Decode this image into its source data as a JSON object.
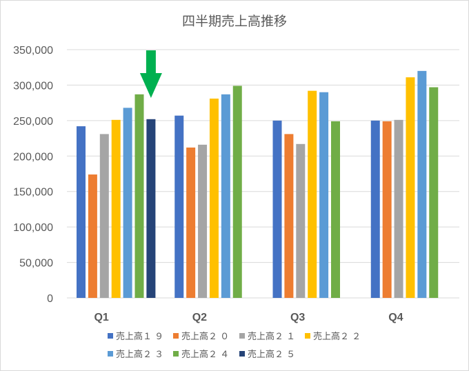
{
  "chart_data": {
    "type": "bar",
    "title": "四半期売上高推移",
    "categories": [
      "Q1",
      "Q2",
      "Q3",
      "Q4"
    ],
    "ylim": [
      0,
      350000
    ],
    "yticks": [
      0,
      50000,
      100000,
      150000,
      200000,
      250000,
      300000,
      350000
    ],
    "ytick_labels": [
      "0",
      "50,000",
      "100,000",
      "150,000",
      "200,000",
      "250,000",
      "300,000",
      "350,000"
    ],
    "grid": true,
    "legend_position": "bottom",
    "series": [
      {
        "name": "売上高１９",
        "color": "#4472C4",
        "values": [
          242000,
          257000,
          250000,
          250000
        ]
      },
      {
        "name": "売上高２０",
        "color": "#ED7D31",
        "values": [
          174000,
          212000,
          231000,
          249000
        ]
      },
      {
        "name": "売上高２１",
        "color": "#A5A5A5",
        "values": [
          231000,
          216000,
          217000,
          251000
        ]
      },
      {
        "name": "売上高２２",
        "color": "#FFC000",
        "values": [
          251000,
          281000,
          292000,
          311000
        ]
      },
      {
        "name": "売上高２３",
        "color": "#5B9BD5",
        "values": [
          268000,
          287000,
          290000,
          320000
        ]
      },
      {
        "name": "売上高２４",
        "color": "#70AD47",
        "values": [
          287000,
          299000,
          249000,
          297000
        ]
      },
      {
        "name": "売上高２５",
        "color": "#264478",
        "values": [
          252000,
          null,
          null,
          null
        ]
      }
    ],
    "annotation": {
      "type": "arrow",
      "color": "#00B050",
      "target_category": "Q1",
      "target_series": "売上高２５"
    }
  }
}
